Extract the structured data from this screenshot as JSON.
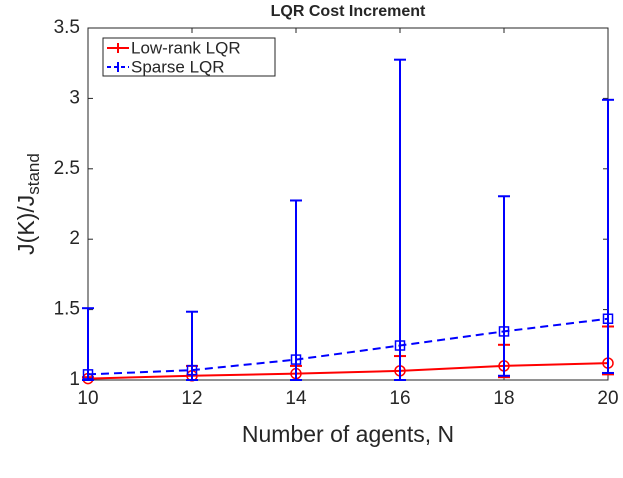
{
  "chart_data": {
    "type": "errorbar_line",
    "title": "LQR Cost Increment",
    "xlabel": "Number of agents, N",
    "ylabel": "J(K)/J",
    "ylabel_subscript": "stand",
    "x": [
      10,
      12,
      14,
      16,
      18,
      20
    ],
    "series": [
      {
        "name": "Low-rank LQR",
        "color": "#ff0000",
        "line_style": "solid",
        "marker": "circle",
        "values": [
          1.01,
          1.03,
          1.045,
          1.065,
          1.1,
          1.12
        ],
        "errors_lower": [
          0.01,
          0.03,
          0.045,
          0.065,
          0.08,
          0.08
        ],
        "errors_upper": [
          0.01,
          0.07,
          0.055,
          0.105,
          0.15,
          0.26
        ]
      },
      {
        "name": "Sparse LQR",
        "color": "#0000ff",
        "line_style": "dashed",
        "marker": "square",
        "values": [
          1.04,
          1.07,
          1.145,
          1.245,
          1.345,
          1.435
        ],
        "errors_lower": [
          0.04,
          0.07,
          0.145,
          0.245,
          0.315,
          0.385
        ],
        "errors_upper": [
          0.47,
          0.415,
          1.13,
          2.03,
          0.96,
          1.555
        ]
      }
    ],
    "xlim": [
      10,
      20
    ],
    "xticks": [
      10,
      12,
      14,
      16,
      18,
      20
    ],
    "ylim": [
      1,
      3.5
    ],
    "yticks": [
      1,
      1.5,
      2,
      2.5,
      3,
      3.5
    ],
    "legend": "upper left",
    "grid": false
  }
}
